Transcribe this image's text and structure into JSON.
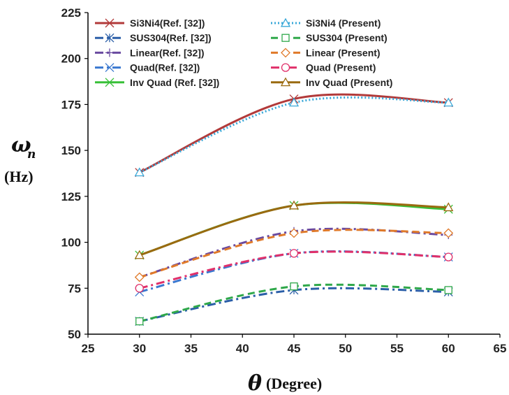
{
  "chart_data": {
    "type": "line",
    "xlabel": {
      "symbol": "θ",
      "unit": "(Degree)"
    },
    "ylabel": {
      "symbol": "ω",
      "subscript": "n",
      "unit": "(Hz)"
    },
    "xlim": [
      25,
      65
    ],
    "ylim": [
      50,
      225
    ],
    "xticks": [
      25,
      30,
      35,
      40,
      45,
      50,
      55,
      60,
      65
    ],
    "yticks": [
      50,
      75,
      100,
      125,
      150,
      175,
      200,
      225
    ],
    "grid": false,
    "legend_position": "top-left, two columns",
    "x": [
      30,
      45,
      60
    ],
    "series": [
      {
        "name": "Si3Ni4(Ref. [32])",
        "values": [
          138,
          178,
          176
        ],
        "color": "#b23a3a",
        "dash": "solid",
        "marker": "x"
      },
      {
        "name": "Si3Ni4 (Present)",
        "values": [
          138,
          176,
          176
        ],
        "color": "#3aa8d8",
        "dash": "dotted",
        "marker": "triangle"
      },
      {
        "name": "SUS304(Ref. [32])",
        "values": [
          57,
          74,
          73
        ],
        "color": "#2b5fa8",
        "dash": "dashdot",
        "marker": "star"
      },
      {
        "name": "SUS304 (Present)",
        "values": [
          57,
          76,
          74
        ],
        "color": "#2fa84a",
        "dash": "dashed",
        "marker": "square"
      },
      {
        "name": "Linear(Ref. [32])",
        "values": [
          81,
          106,
          104
        ],
        "color": "#6a4aa0",
        "dash": "dashdot",
        "marker": "plus"
      },
      {
        "name": "Linear (Present)",
        "values": [
          81,
          105,
          105
        ],
        "color": "#e07a2a",
        "dash": "dashed",
        "marker": "diamond"
      },
      {
        "name": "Quad(Ref. [32])",
        "values": [
          73,
          94,
          92
        ],
        "color": "#3a78d0",
        "dash": "dashdot",
        "marker": "x"
      },
      {
        "name": "Quad (Present)",
        "values": [
          75,
          94,
          92
        ],
        "color": "#e0306a",
        "dash": "dashdot",
        "marker": "circle"
      },
      {
        "name": "Inv Quad (Ref. [32])",
        "values": [
          93,
          120,
          118
        ],
        "color": "#38c038",
        "dash": "solid",
        "marker": "x"
      },
      {
        "name": "Inv Quad (Present)",
        "values": [
          93,
          120,
          119
        ],
        "color": "#9a6a10",
        "dash": "solid",
        "marker": "triangle"
      }
    ]
  }
}
